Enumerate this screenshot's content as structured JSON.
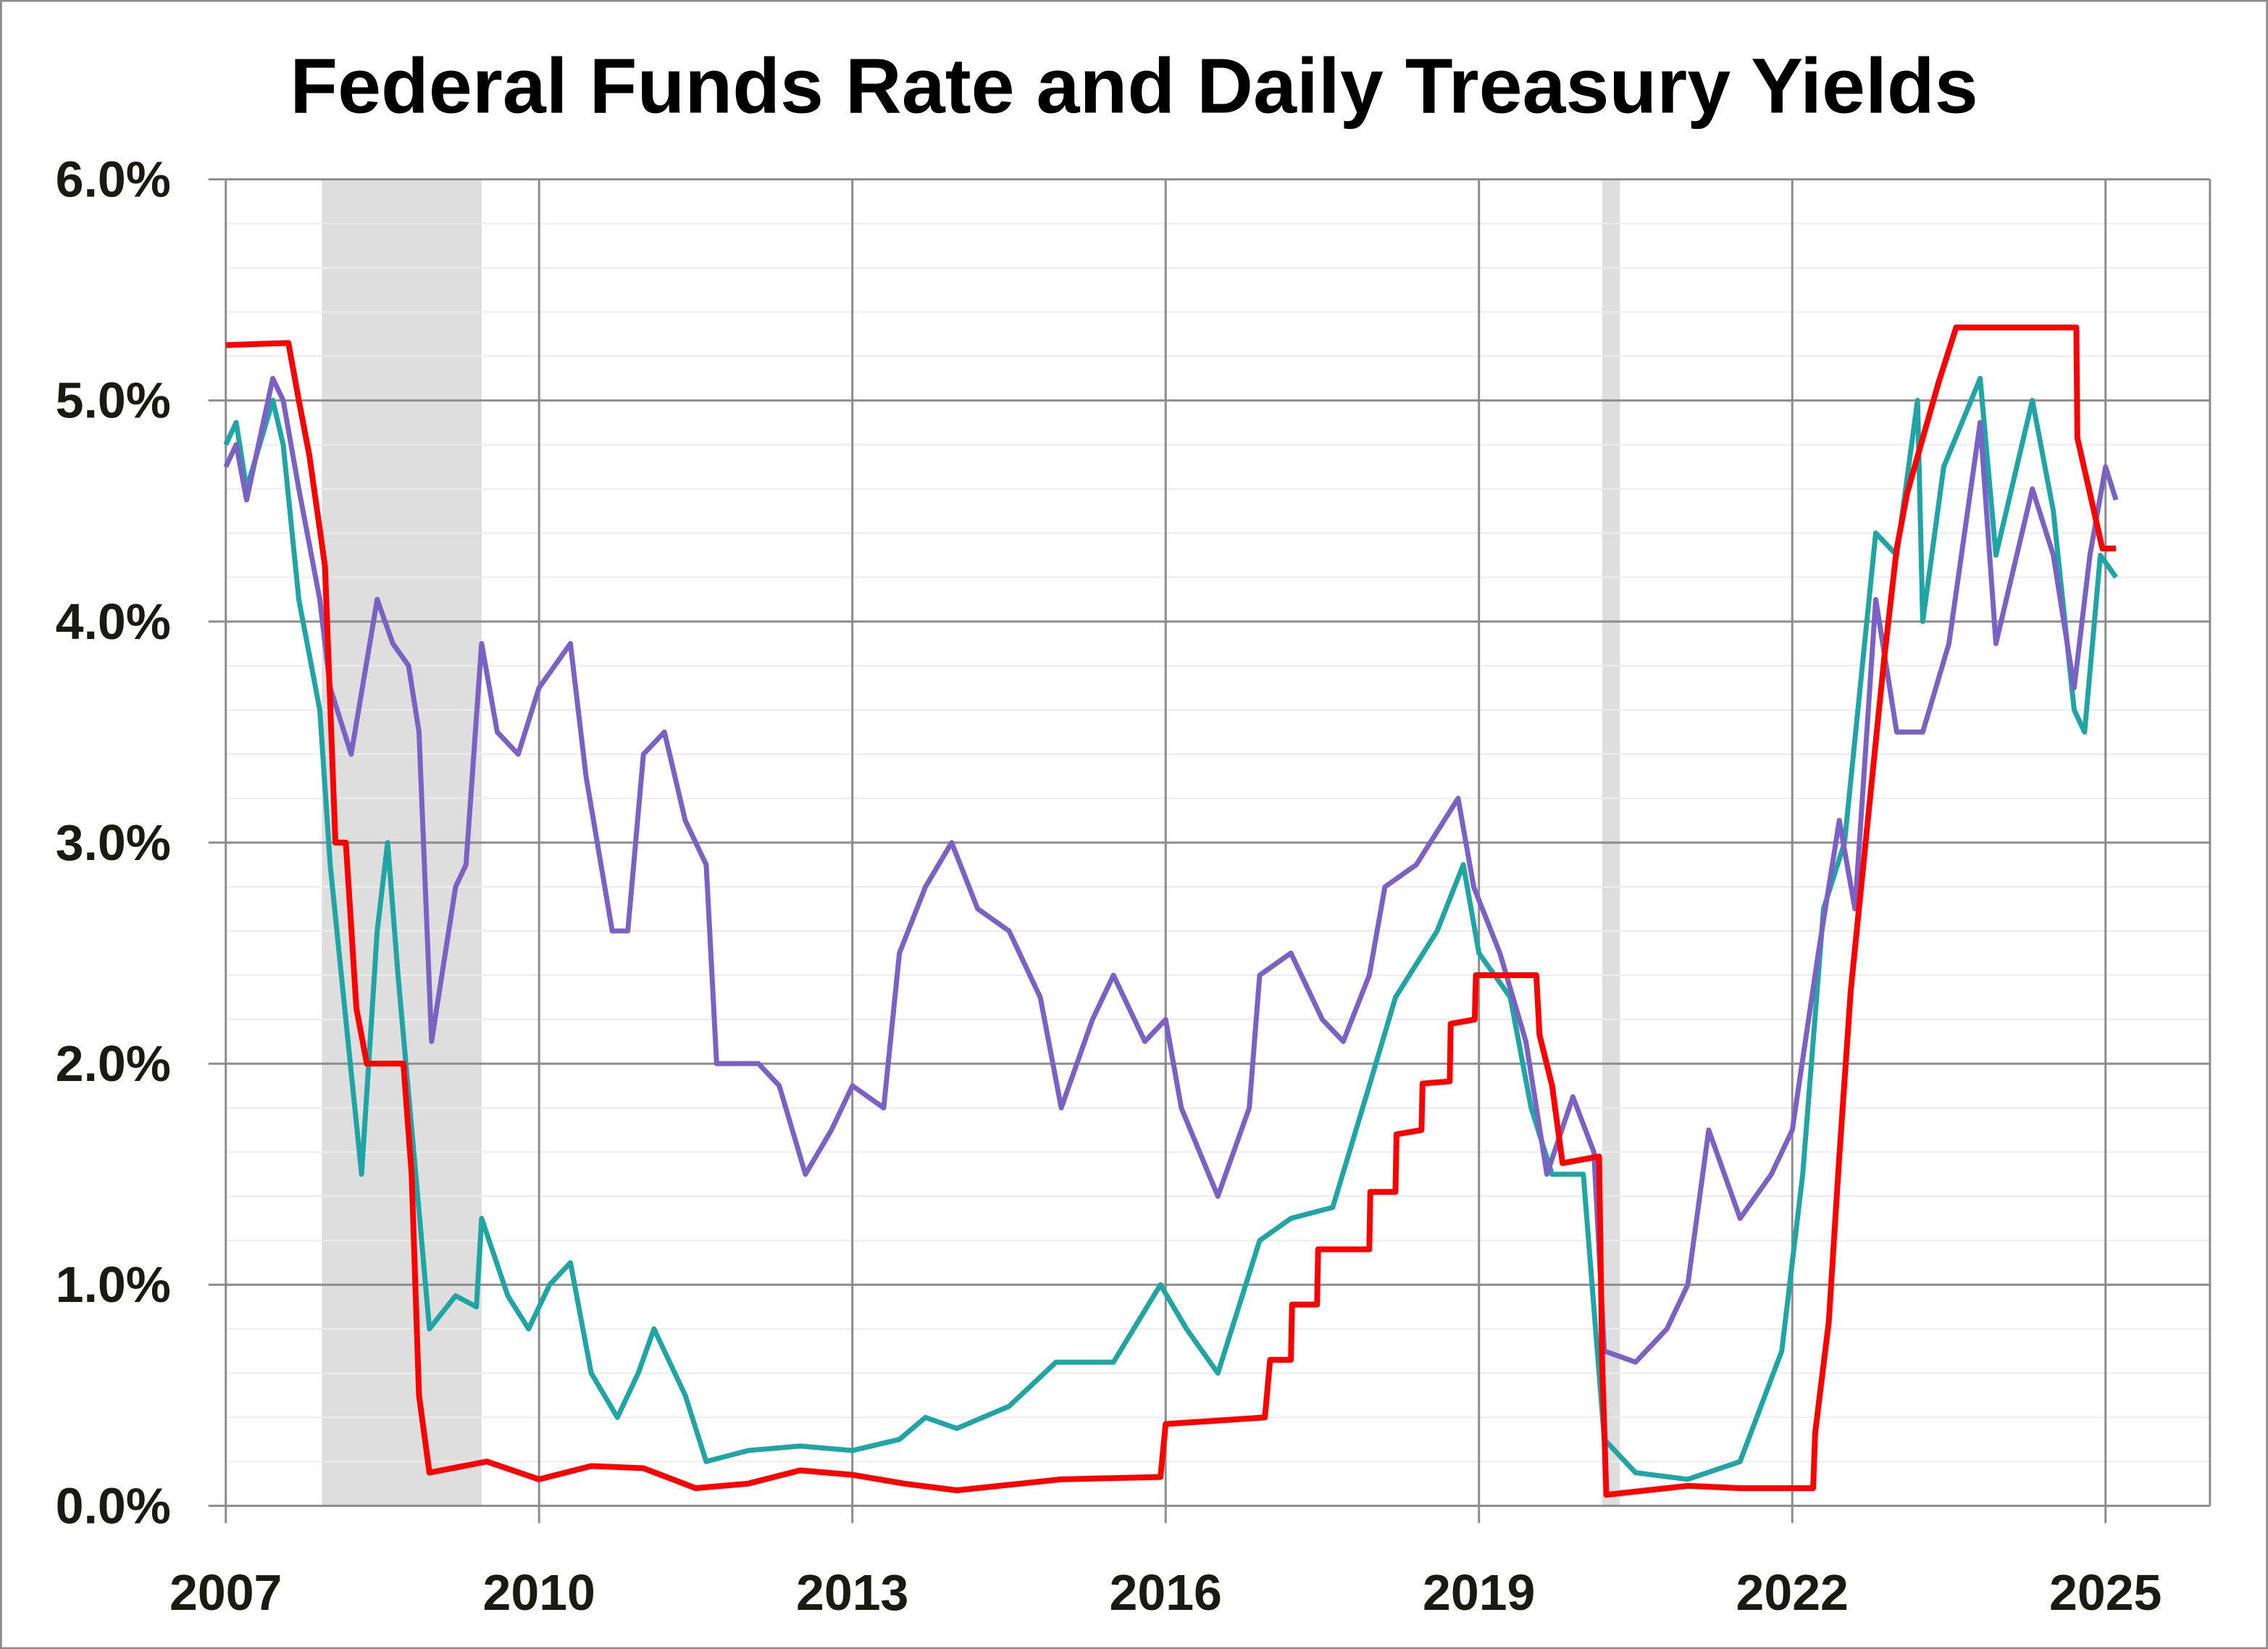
{
  "chart_data": {
    "type": "line",
    "title": "Federal Funds Rate and Daily Treasury Yields",
    "xlabel": "",
    "ylabel": "",
    "xlim": [
      2007,
      2026
    ],
    "ylim": [
      0,
      6
    ],
    "x_ticks": [
      2007,
      2010,
      2013,
      2016,
      2019,
      2022,
      2025
    ],
    "x_tick_labels": [
      "2007",
      "2010",
      "2013",
      "2016",
      "2019",
      "2022",
      "2025"
    ],
    "y_ticks": [
      0,
      1,
      2,
      3,
      4,
      5,
      6
    ],
    "y_tick_labels": [
      "0.0%",
      "1.0%",
      "2.0%",
      "3.0%",
      "4.0%",
      "5.0%",
      "6.0%"
    ],
    "grid": true,
    "minor_grid_step": 0.2,
    "legend": "none",
    "recession_shading": [
      [
        2007.92,
        2009.45
      ],
      [
        2020.18,
        2020.35
      ]
    ],
    "colors": {
      "fed_funds": "#ff0000",
      "ten_year": "#7b61c4",
      "two_year": "#1fa5a5",
      "recession": "#dedede",
      "grid": "#8c8c8c"
    },
    "series": [
      {
        "key": "two_year",
        "color": "#1fa5a5",
        "points": [
          [
            2007.0,
            4.8
          ],
          [
            2007.1,
            4.9
          ],
          [
            2007.2,
            4.6
          ],
          [
            2007.45,
            5.0
          ],
          [
            2007.55,
            4.8
          ],
          [
            2007.7,
            4.1
          ],
          [
            2007.9,
            3.6
          ],
          [
            2008.0,
            2.9
          ],
          [
            2008.15,
            2.2
          ],
          [
            2008.3,
            1.5
          ],
          [
            2008.45,
            2.6
          ],
          [
            2008.55,
            3.0
          ],
          [
            2008.65,
            2.4
          ],
          [
            2008.8,
            1.6
          ],
          [
            2008.95,
            0.8
          ],
          [
            2009.2,
            0.95
          ],
          [
            2009.4,
            0.9
          ],
          [
            2009.45,
            1.3
          ],
          [
            2009.7,
            0.95
          ],
          [
            2009.9,
            0.8
          ],
          [
            2010.1,
            1.0
          ],
          [
            2010.3,
            1.1
          ],
          [
            2010.5,
            0.6
          ],
          [
            2010.75,
            0.4
          ],
          [
            2010.95,
            0.6
          ],
          [
            2011.1,
            0.8
          ],
          [
            2011.4,
            0.5
          ],
          [
            2011.6,
            0.2
          ],
          [
            2012.0,
            0.25
          ],
          [
            2012.5,
            0.27
          ],
          [
            2013.0,
            0.25
          ],
          [
            2013.45,
            0.3
          ],
          [
            2013.7,
            0.4
          ],
          [
            2014.0,
            0.35
          ],
          [
            2014.5,
            0.45
          ],
          [
            2014.95,
            0.65
          ],
          [
            2015.5,
            0.65
          ],
          [
            2015.95,
            1.0
          ],
          [
            2016.2,
            0.8
          ],
          [
            2016.5,
            0.6
          ],
          [
            2016.9,
            1.2
          ],
          [
            2017.2,
            1.3
          ],
          [
            2017.6,
            1.35
          ],
          [
            2017.95,
            1.9
          ],
          [
            2018.2,
            2.3
          ],
          [
            2018.6,
            2.6
          ],
          [
            2018.85,
            2.9
          ],
          [
            2019.0,
            2.5
          ],
          [
            2019.3,
            2.3
          ],
          [
            2019.5,
            1.8
          ],
          [
            2019.7,
            1.5
          ],
          [
            2020.0,
            1.5
          ],
          [
            2020.2,
            0.3
          ],
          [
            2020.5,
            0.15
          ],
          [
            2021.0,
            0.12
          ],
          [
            2021.5,
            0.2
          ],
          [
            2021.9,
            0.7
          ],
          [
            2022.1,
            1.5
          ],
          [
            2022.3,
            2.7
          ],
          [
            2022.5,
            3.0
          ],
          [
            2022.8,
            4.4
          ],
          [
            2023.0,
            4.3
          ],
          [
            2023.2,
            5.0
          ],
          [
            2023.25,
            4.0
          ],
          [
            2023.45,
            4.7
          ],
          [
            2023.8,
            5.1
          ],
          [
            2023.95,
            4.3
          ],
          [
            2024.3,
            5.0
          ],
          [
            2024.5,
            4.5
          ],
          [
            2024.7,
            3.6
          ],
          [
            2024.8,
            3.5
          ],
          [
            2024.95,
            4.3
          ],
          [
            2025.1,
            4.2
          ]
        ]
      },
      {
        "key": "ten_year",
        "color": "#7b61c4",
        "points": [
          [
            2007.0,
            4.7
          ],
          [
            2007.1,
            4.8
          ],
          [
            2007.2,
            4.55
          ],
          [
            2007.45,
            5.1
          ],
          [
            2007.55,
            5.0
          ],
          [
            2007.7,
            4.6
          ],
          [
            2007.9,
            4.1
          ],
          [
            2008.0,
            3.7
          ],
          [
            2008.2,
            3.4
          ],
          [
            2008.45,
            4.1
          ],
          [
            2008.6,
            3.9
          ],
          [
            2008.75,
            3.8
          ],
          [
            2008.85,
            3.5
          ],
          [
            2008.97,
            2.1
          ],
          [
            2009.2,
            2.8
          ],
          [
            2009.3,
            2.9
          ],
          [
            2009.45,
            3.9
          ],
          [
            2009.6,
            3.5
          ],
          [
            2009.8,
            3.4
          ],
          [
            2010.0,
            3.7
          ],
          [
            2010.3,
            3.9
          ],
          [
            2010.45,
            3.3
          ],
          [
            2010.7,
            2.6
          ],
          [
            2010.85,
            2.6
          ],
          [
            2011.0,
            3.4
          ],
          [
            2011.2,
            3.5
          ],
          [
            2011.4,
            3.1
          ],
          [
            2011.6,
            2.9
          ],
          [
            2011.7,
            2.0
          ],
          [
            2011.9,
            2.0
          ],
          [
            2012.1,
            2.0
          ],
          [
            2012.3,
            1.9
          ],
          [
            2012.55,
            1.5
          ],
          [
            2012.8,
            1.7
          ],
          [
            2013.0,
            1.9
          ],
          [
            2013.3,
            1.8
          ],
          [
            2013.45,
            2.5
          ],
          [
            2013.7,
            2.8
          ],
          [
            2013.95,
            3.0
          ],
          [
            2014.2,
            2.7
          ],
          [
            2014.5,
            2.6
          ],
          [
            2014.8,
            2.3
          ],
          [
            2015.0,
            1.8
          ],
          [
            2015.3,
            2.2
          ],
          [
            2015.5,
            2.4
          ],
          [
            2015.8,
            2.1
          ],
          [
            2016.0,
            2.2
          ],
          [
            2016.15,
            1.8
          ],
          [
            2016.5,
            1.4
          ],
          [
            2016.8,
            1.8
          ],
          [
            2016.9,
            2.4
          ],
          [
            2017.2,
            2.5
          ],
          [
            2017.5,
            2.2
          ],
          [
            2017.7,
            2.1
          ],
          [
            2017.95,
            2.4
          ],
          [
            2018.1,
            2.8
          ],
          [
            2018.4,
            2.9
          ],
          [
            2018.8,
            3.2
          ],
          [
            2018.95,
            2.8
          ],
          [
            2019.2,
            2.5
          ],
          [
            2019.45,
            2.1
          ],
          [
            2019.65,
            1.5
          ],
          [
            2019.9,
            1.85
          ],
          [
            2020.1,
            1.6
          ],
          [
            2020.2,
            0.7
          ],
          [
            2020.5,
            0.65
          ],
          [
            2020.8,
            0.8
          ],
          [
            2021.0,
            1.0
          ],
          [
            2021.2,
            1.7
          ],
          [
            2021.5,
            1.3
          ],
          [
            2021.8,
            1.5
          ],
          [
            2022.0,
            1.7
          ],
          [
            2022.25,
            2.5
          ],
          [
            2022.45,
            3.1
          ],
          [
            2022.6,
            2.7
          ],
          [
            2022.8,
            4.1
          ],
          [
            2023.0,
            3.5
          ],
          [
            2023.25,
            3.5
          ],
          [
            2023.5,
            3.9
          ],
          [
            2023.8,
            4.9
          ],
          [
            2023.95,
            3.9
          ],
          [
            2024.3,
            4.6
          ],
          [
            2024.5,
            4.3
          ],
          [
            2024.7,
            3.7
          ],
          [
            2024.85,
            4.3
          ],
          [
            2025.0,
            4.7
          ],
          [
            2025.1,
            4.55
          ]
        ]
      },
      {
        "key": "fed_funds",
        "color": "#ff0000",
        "points": [
          [
            2007.0,
            5.25
          ],
          [
            2007.6,
            5.26
          ],
          [
            2007.7,
            5.0
          ],
          [
            2007.8,
            4.75
          ],
          [
            2007.95,
            4.25
          ],
          [
            2008.05,
            3.0
          ],
          [
            2008.15,
            3.0
          ],
          [
            2008.25,
            2.25
          ],
          [
            2008.35,
            2.0
          ],
          [
            2008.7,
            2.0
          ],
          [
            2008.78,
            1.5
          ],
          [
            2008.85,
            0.5
          ],
          [
            2008.95,
            0.15
          ],
          [
            2009.5,
            0.2
          ],
          [
            2010.0,
            0.12
          ],
          [
            2010.5,
            0.18
          ],
          [
            2011.0,
            0.17
          ],
          [
            2011.5,
            0.08
          ],
          [
            2012.0,
            0.1
          ],
          [
            2012.5,
            0.16
          ],
          [
            2013.0,
            0.14
          ],
          [
            2013.5,
            0.1
          ],
          [
            2014.0,
            0.07
          ],
          [
            2015.0,
            0.12
          ],
          [
            2015.95,
            0.13
          ],
          [
            2016.0,
            0.37
          ],
          [
            2016.95,
            0.4
          ],
          [
            2017.0,
            0.66
          ],
          [
            2017.2,
            0.66
          ],
          [
            2017.21,
            0.91
          ],
          [
            2017.45,
            0.91
          ],
          [
            2017.46,
            1.16
          ],
          [
            2017.95,
            1.16
          ],
          [
            2017.96,
            1.42
          ],
          [
            2018.2,
            1.42
          ],
          [
            2018.21,
            1.68
          ],
          [
            2018.45,
            1.7
          ],
          [
            2018.46,
            1.91
          ],
          [
            2018.72,
            1.92
          ],
          [
            2018.73,
            2.18
          ],
          [
            2018.96,
            2.2
          ],
          [
            2018.97,
            2.4
          ],
          [
            2019.55,
            2.4
          ],
          [
            2019.58,
            2.13
          ],
          [
            2019.7,
            1.9
          ],
          [
            2019.8,
            1.55
          ],
          [
            2020.15,
            1.58
          ],
          [
            2020.18,
            0.65
          ],
          [
            2020.22,
            0.05
          ],
          [
            2021.0,
            0.09
          ],
          [
            2021.5,
            0.08
          ],
          [
            2022.2,
            0.08
          ],
          [
            2022.22,
            0.33
          ],
          [
            2022.35,
            0.83
          ],
          [
            2022.45,
            1.58
          ],
          [
            2022.56,
            2.33
          ],
          [
            2022.72,
            3.08
          ],
          [
            2022.88,
            3.83
          ],
          [
            2023.0,
            4.33
          ],
          [
            2023.1,
            4.58
          ],
          [
            2023.25,
            4.83
          ],
          [
            2023.4,
            5.08
          ],
          [
            2023.57,
            5.33
          ],
          [
            2024.72,
            5.33
          ],
          [
            2024.73,
            4.83
          ],
          [
            2024.85,
            4.58
          ],
          [
            2024.97,
            4.33
          ],
          [
            2025.1,
            4.33
          ]
        ]
      }
    ]
  }
}
